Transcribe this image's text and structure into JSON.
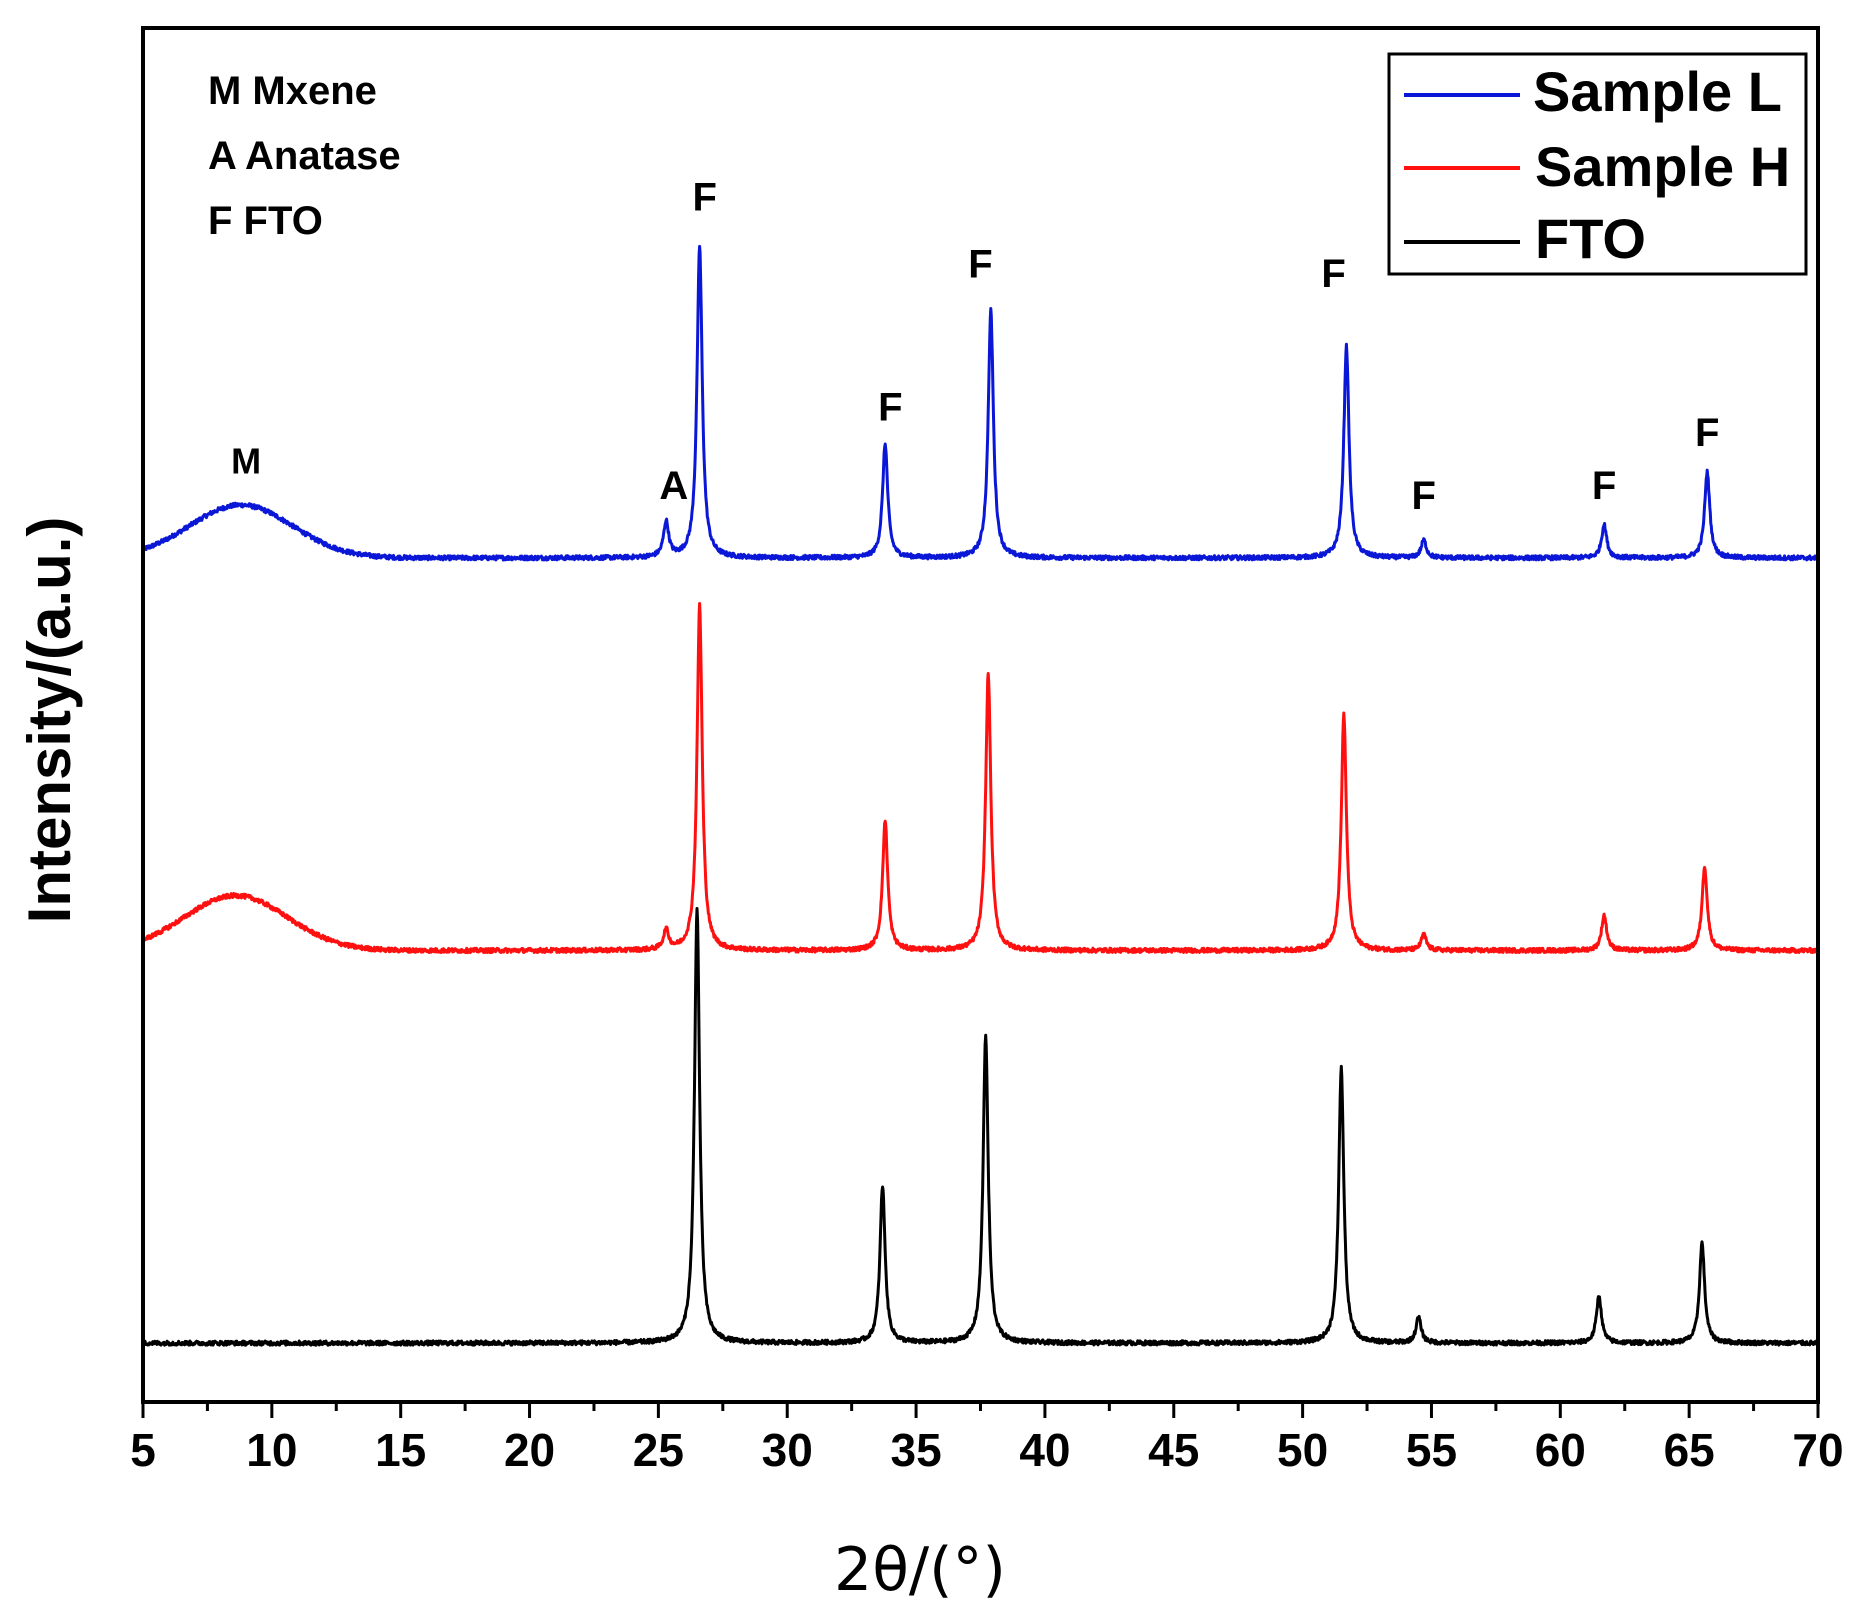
{
  "chart_data": {
    "type": "line",
    "title": "",
    "xlabel": "2θ/(°)",
    "ylabel": "Intensity/(a.u.)",
    "xlim": [
      5,
      70
    ],
    "x_ticks": [
      5,
      10,
      15,
      20,
      25,
      30,
      35,
      40,
      45,
      50,
      55,
      60,
      65,
      70
    ],
    "y_ticks_shown": false,
    "legend_position": "top-right",
    "phase_key": [
      "M Mxene",
      "A Anatase",
      "F FTO"
    ],
    "series": [
      {
        "name": "Sample L",
        "color": "#0a17d6",
        "offset": 2.3,
        "broad_peaks": [
          {
            "center": 8.8,
            "height": 0.27,
            "width": 2.0
          }
        ],
        "peaks": [
          {
            "pos": 25.3,
            "height": 0.18
          },
          {
            "pos": 26.6,
            "height": 1.59
          },
          {
            "pos": 33.8,
            "height": 0.58
          },
          {
            "pos": 37.9,
            "height": 1.26
          },
          {
            "pos": 51.7,
            "height": 1.08
          },
          {
            "pos": 54.7,
            "height": 0.09
          },
          {
            "pos": 61.7,
            "height": 0.17
          },
          {
            "pos": 65.7,
            "height": 0.44
          }
        ]
      },
      {
        "name": "Sample H",
        "color": "#ff1010",
        "offset": 0.3,
        "broad_peaks": [
          {
            "center": 8.6,
            "height": 0.28,
            "width": 2.0
          }
        ],
        "peaks": [
          {
            "pos": 25.3,
            "height": 0.1
          },
          {
            "pos": 26.6,
            "height": 1.76
          },
          {
            "pos": 33.8,
            "height": 0.66
          },
          {
            "pos": 37.8,
            "height": 1.41
          },
          {
            "pos": 51.6,
            "height": 1.2
          },
          {
            "pos": 54.7,
            "height": 0.08
          },
          {
            "pos": 61.7,
            "height": 0.18
          },
          {
            "pos": 65.6,
            "height": 0.43
          }
        ]
      },
      {
        "name": "FTO",
        "color": "#000000",
        "offset": -1.7,
        "broad_peaks": [],
        "peaks": [
          {
            "pos": 26.5,
            "height": 2.21
          },
          {
            "pos": 33.7,
            "height": 0.8
          },
          {
            "pos": 37.7,
            "height": 1.56
          },
          {
            "pos": 51.5,
            "height": 1.4
          },
          {
            "pos": 54.5,
            "height": 0.13
          },
          {
            "pos": 61.5,
            "height": 0.24
          },
          {
            "pos": 65.5,
            "height": 0.51
          }
        ]
      }
    ],
    "annotations": [
      {
        "text": "M",
        "x": 9.0,
        "y": 2.73,
        "size": "small"
      },
      {
        "text": "A",
        "x": 25.6,
        "y": 2.6,
        "size": "normal"
      },
      {
        "text": "F",
        "x": 26.8,
        "y": 4.07,
        "size": "normal"
      },
      {
        "text": "F",
        "x": 34.0,
        "y": 3.0,
        "size": "normal"
      },
      {
        "text": "F",
        "x": 37.5,
        "y": 3.73,
        "size": "normal"
      },
      {
        "text": "F",
        "x": 51.2,
        "y": 3.68,
        "size": "normal"
      },
      {
        "text": "F",
        "x": 54.7,
        "y": 2.55,
        "size": "normal"
      },
      {
        "text": "F",
        "x": 61.7,
        "y": 2.6,
        "size": "normal"
      },
      {
        "text": "F",
        "x": 65.7,
        "y": 2.87,
        "size": "normal"
      }
    ]
  }
}
